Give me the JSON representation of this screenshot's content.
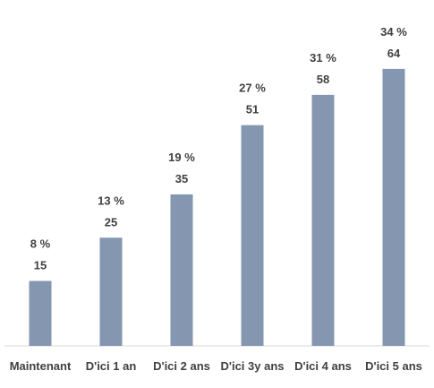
{
  "chart_data": {
    "type": "bar",
    "title": "",
    "xlabel": "",
    "ylabel": "",
    "categories": [
      "Maintenant",
      "D'ici 1 an",
      "D'ici 2 ans",
      "D'ici 3y ans",
      "D'ici 4 ans",
      "D'ici 5 ans"
    ],
    "values": [
      15,
      25,
      35,
      51,
      58,
      64
    ],
    "percent_labels": [
      "8 %",
      "13 %",
      "19 %",
      "27 %",
      "31 %",
      "34 %"
    ],
    "ylim": [
      0,
      70
    ],
    "grid": false,
    "legend": "none",
    "bar_color": "#8496B0",
    "axis_color": "#D9D9D9",
    "label_color": "#404040"
  }
}
